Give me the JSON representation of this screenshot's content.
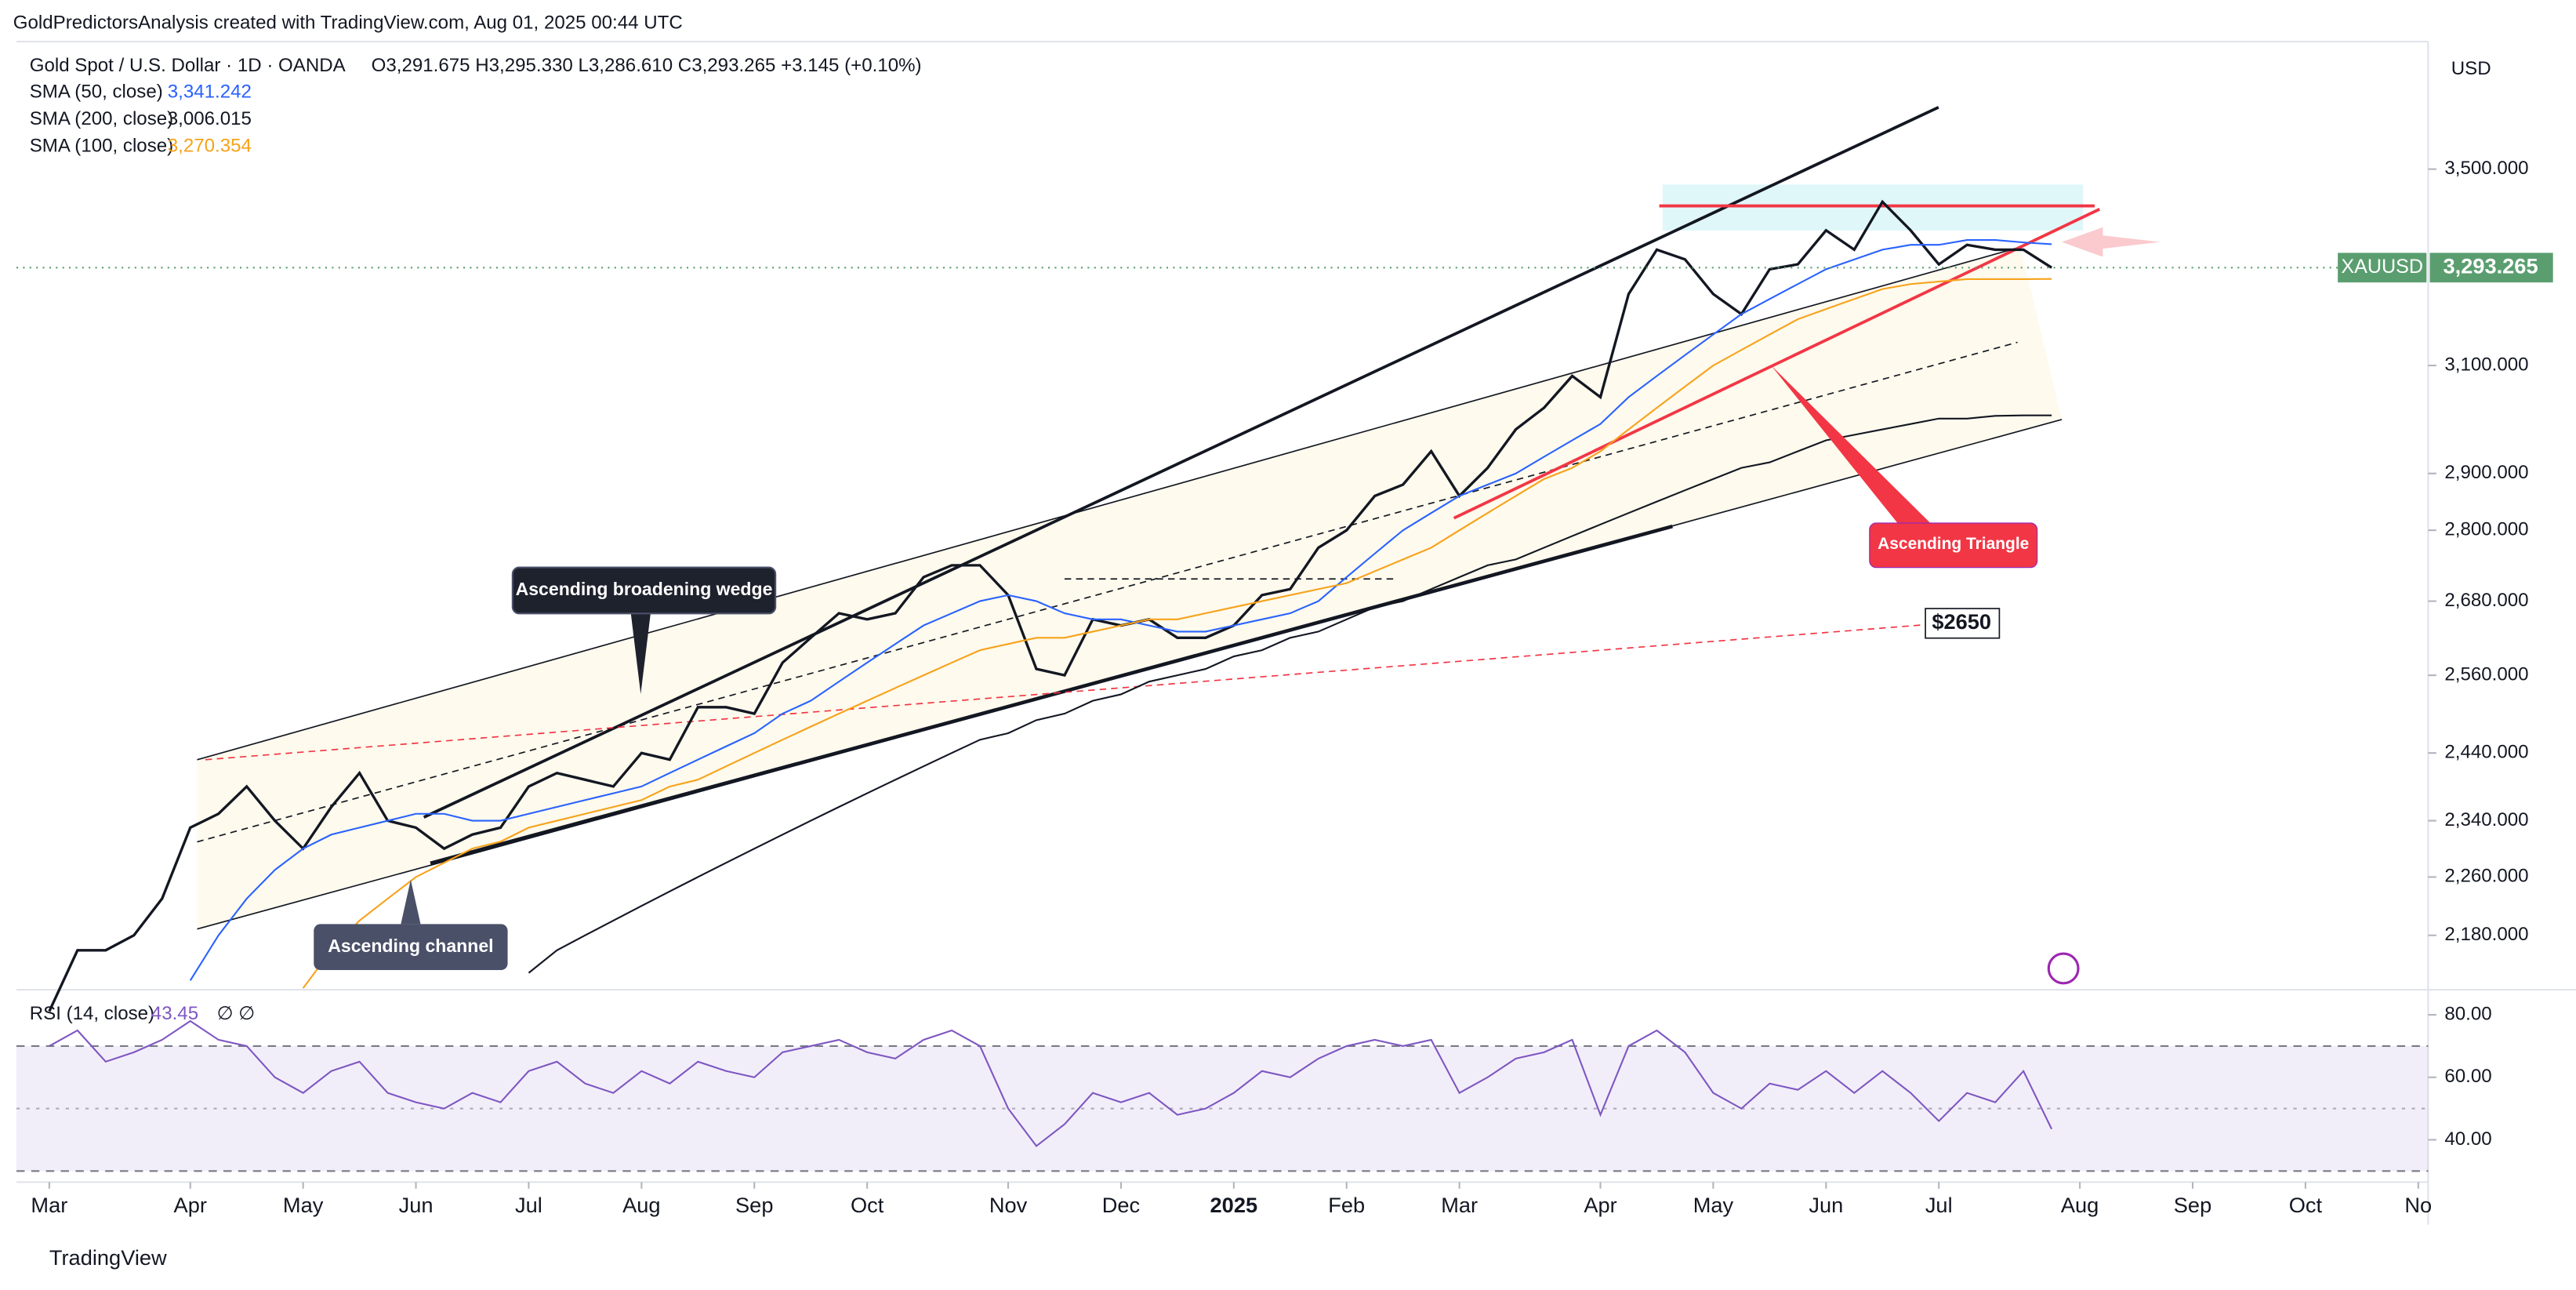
{
  "header": {
    "credit": "GoldPredictorsAnalysis created with TradingView.com, Aug 01, 2025 00:44 UTC",
    "footer": "TradingView"
  },
  "chart_data": [
    {
      "type": "line",
      "title": "Gold Spot / U.S. Dollar · 1D · OANDA",
      "ohlc": "O3,291.675  H3,295.330  L3,286.610  C3,293.265  +3.145 (+0.10%)",
      "axis_unit": "USD",
      "log_scale": true,
      "categories": [
        "Mar",
        null,
        null,
        null,
        null,
        "Apr",
        null,
        null,
        null,
        "May",
        null,
        null,
        null,
        "Jun",
        null,
        null,
        null,
        "Jul",
        null,
        null,
        null,
        "Aug",
        null,
        null,
        null,
        "Sep",
        null,
        null,
        null,
        "Oct",
        null,
        null,
        null,
        null,
        "Nov",
        null,
        null,
        null,
        "Dec",
        null,
        null,
        null,
        "2025",
        null,
        null,
        null,
        "Feb",
        null,
        null,
        null,
        "Mar",
        null,
        null,
        null,
        null,
        "Apr",
        null,
        null,
        null,
        "May",
        null,
        null,
        null,
        "Jun",
        null,
        null,
        null,
        "Jul",
        null,
        null,
        null,
        null,
        "Aug",
        null,
        null,
        null,
        "Sep",
        null,
        null,
        null,
        "Oct",
        null,
        null,
        null,
        "No"
      ],
      "series": [
        {
          "name": "XAUUSD",
          "color": "#131722",
          "last_label": "3,293.265",
          "values": [
            2080,
            2160,
            2160,
            2180,
            2230,
            2330,
            2350,
            2390,
            2340,
            2300,
            2360,
            2410,
            2340,
            2330,
            2300,
            2320,
            2330,
            2390,
            2410,
            2400,
            2390,
            2440,
            2430,
            2510,
            2510,
            2500,
            2580,
            2620,
            2660,
            2650,
            2660,
            2720,
            2740,
            2740,
            2690,
            2570,
            2560,
            2650,
            2640,
            2650,
            2620,
            2620,
            2640,
            2690,
            2700,
            2770,
            2800,
            2860,
            2880,
            2940,
            2860,
            2910,
            2980,
            3020,
            3080,
            3040,
            3240,
            3330,
            3310,
            3240,
            3200,
            3290,
            3300,
            3370,
            3330,
            3430,
            3370,
            3300,
            3340,
            3330,
            3330,
            3293.265,
            null,
            null,
            null,
            null,
            null,
            null,
            null,
            null,
            null,
            null,
            null,
            null,
            null
          ]
        },
        {
          "name": "SMA (50, close)",
          "color": "#2962ff",
          "last_label": "3,341.242",
          "values": [
            null,
            null,
            null,
            null,
            null,
            2120,
            2180,
            2230,
            2270,
            2300,
            2320,
            2330,
            2340,
            2350,
            2350,
            2340,
            2340,
            2350,
            2360,
            2370,
            2380,
            2390,
            2410,
            2430,
            2450,
            2470,
            2500,
            2520,
            2550,
            2580,
            2610,
            2640,
            2660,
            2680,
            2690,
            2680,
            2660,
            2650,
            2650,
            2640,
            2630,
            2630,
            2640,
            2650,
            2660,
            2680,
            2720,
            2760,
            2800,
            2830,
            2860,
            2880,
            2900,
            2930,
            2960,
            2990,
            3040,
            3080,
            3120,
            3160,
            3200,
            3230,
            3260,
            3290,
            3310,
            3330,
            3340,
            3340,
            3350,
            3350,
            3345,
            3341.242,
            null,
            null,
            null,
            null,
            null,
            null,
            null,
            null,
            null,
            null,
            null,
            null,
            null
          ]
        },
        {
          "name": "SMA (200, close)",
          "color": "#131722",
          "last_label": "3,006.015",
          "values": [
            null,
            null,
            null,
            null,
            null,
            null,
            null,
            null,
            null,
            null,
            null,
            null,
            null,
            null,
            null,
            null,
            null,
            2130,
            2160,
            2180,
            2200,
            2220,
            2240,
            2260,
            2280,
            2300,
            2320,
            2340,
            2360,
            2380,
            2400,
            2420,
            2440,
            2460,
            2470,
            2490,
            2500,
            2520,
            2530,
            2550,
            2560,
            2570,
            2590,
            2600,
            2620,
            2630,
            2650,
            2670,
            2680,
            2700,
            2720,
            2740,
            2750,
            2770,
            2790,
            2810,
            2830,
            2850,
            2870,
            2890,
            2910,
            2920,
            2940,
            2960,
            2970,
            2980,
            2990,
            3000,
            3000,
            3005,
            3006,
            3006.015,
            null,
            null,
            null,
            null,
            null,
            null,
            null,
            null,
            null,
            null,
            null,
            null,
            null
          ]
        },
        {
          "name": "SMA (100, close)",
          "color": "#f7a21b",
          "last_label": "3,270.354",
          "values": [
            null,
            null,
            null,
            null,
            null,
            null,
            null,
            null,
            null,
            2110,
            2160,
            2200,
            2230,
            2260,
            2280,
            2300,
            2310,
            2330,
            2340,
            2350,
            2360,
            2370,
            2390,
            2400,
            2420,
            2440,
            2460,
            2480,
            2500,
            2520,
            2540,
            2560,
            2580,
            2600,
            2610,
            2620,
            2620,
            2630,
            2640,
            2650,
            2650,
            2660,
            2670,
            2680,
            2690,
            2700,
            2710,
            2730,
            2750,
            2770,
            2800,
            2830,
            2860,
            2890,
            2910,
            2940,
            2980,
            3020,
            3060,
            3100,
            3130,
            3160,
            3190,
            3210,
            3230,
            3250,
            3260,
            3265,
            3270,
            3270,
            3270,
            3270.354,
            null,
            null,
            null,
            null,
            null,
            null,
            null,
            null,
            null,
            null,
            null,
            null,
            null
          ]
        }
      ],
      "ylim": [
        2110,
        3787
      ],
      "yticks": [
        {
          "value": 2180,
          "label": "2,180.000"
        },
        {
          "value": 2260,
          "label": "2,260.000"
        },
        {
          "value": 2340,
          "label": "2,340.000"
        },
        {
          "value": 2440,
          "label": "2,440.000"
        },
        {
          "value": 2560,
          "label": "2,560.000"
        },
        {
          "value": 2680,
          "label": "2,680.000"
        },
        {
          "value": 2800,
          "label": "2,800.000"
        },
        {
          "value": 2900,
          "label": "2,900.000"
        },
        {
          "value": 3100,
          "label": "3,100.000"
        },
        {
          "value": 3500,
          "label": "3,500.000"
        }
      ],
      "annotations": {
        "wedge": "Ascending broadening wedge",
        "channel": "Ascending channel",
        "triangle": "Ascending Triangle",
        "target": "$2650"
      }
    },
    {
      "type": "line",
      "title": "RSI (14, close)",
      "na_labels": "∅ ∅",
      "bands": [
        30,
        70
      ],
      "series": [
        {
          "color": "#7e57c2",
          "last_label": "43.45",
          "values": [
            70,
            75,
            65,
            68,
            72,
            78,
            72,
            70,
            60,
            55,
            62,
            65,
            55,
            52,
            50,
            55,
            52,
            62,
            65,
            58,
            55,
            62,
            58,
            65,
            62,
            60,
            68,
            70,
            72,
            68,
            66,
            72,
            75,
            70,
            50,
            38,
            45,
            55,
            52,
            55,
            48,
            50,
            55,
            62,
            60,
            66,
            70,
            72,
            70,
            72,
            55,
            60,
            66,
            68,
            72,
            48,
            70,
            75,
            68,
            55,
            50,
            58,
            56,
            62,
            55,
            62,
            55,
            46,
            55,
            52,
            62,
            43.45,
            null,
            null,
            null,
            null,
            null,
            null,
            null,
            null,
            null,
            null,
            null,
            null,
            null
          ]
        }
      ],
      "ylim": [
        27,
        88
      ],
      "yticks": [
        {
          "value": 40,
          "label": "40.00"
        },
        {
          "value": 60,
          "label": "60.00"
        },
        {
          "value": 80,
          "label": "80.00"
        }
      ]
    }
  ]
}
